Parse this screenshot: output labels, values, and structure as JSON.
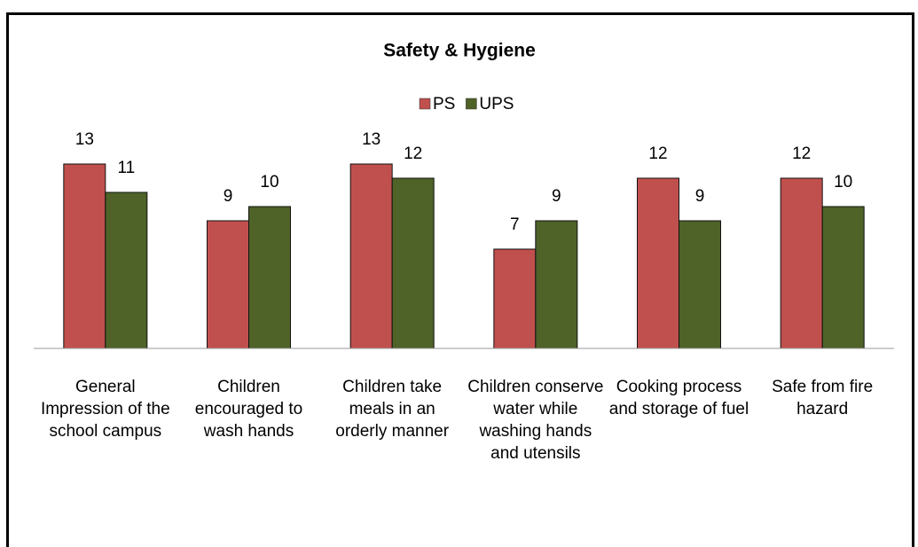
{
  "chart_data": {
    "type": "bar",
    "title": "Safety & Hygiene",
    "categories": [
      "General Impression of the school campus",
      "Children encouraged to wash hands",
      "Children take meals in an orderly manner",
      "Children conserve water while washing hands and utensils",
      "Cooking process and storage of fuel",
      "Safe from fire hazard"
    ],
    "series": [
      {
        "name": "PS",
        "color": "#c0504d",
        "values": [
          13,
          9,
          13,
          7,
          12,
          12
        ]
      },
      {
        "name": "UPS",
        "color": "#4f6228",
        "values": [
          11,
          10,
          12,
          9,
          9,
          10
        ]
      }
    ],
    "ylim": [
      0,
      14
    ]
  }
}
